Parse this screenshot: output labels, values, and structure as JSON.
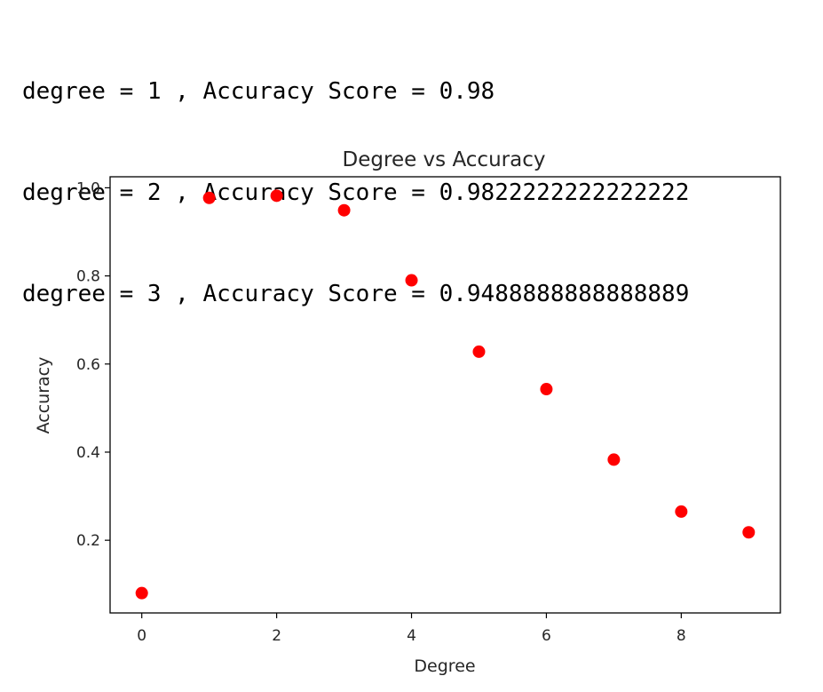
{
  "output": {
    "lines": [
      "degree = 1 , Accuracy Score = 0.98",
      "degree = 2 , Accuracy Score = 0.9822222222222222",
      "degree = 3 , Accuracy Score = 0.9488888888888889"
    ]
  },
  "chart_data": {
    "type": "scatter",
    "title": "Degree vs Accuracy",
    "xlabel": "Degree",
    "ylabel": "Accuracy",
    "x": [
      0,
      1,
      2,
      3,
      4,
      5,
      6,
      7,
      8,
      9
    ],
    "y": [
      0.08,
      0.977,
      0.982,
      0.949,
      0.79,
      0.628,
      0.543,
      0.383,
      0.265,
      0.218
    ],
    "xlim": [
      -0.47,
      9.47
    ],
    "ylim": [
      0.035,
      1.025
    ],
    "xticks": [
      0,
      2,
      4,
      6,
      8
    ],
    "xtick_labels": [
      "0",
      "2",
      "4",
      "6",
      "8"
    ],
    "yticks": [
      0.2,
      0.4,
      0.6,
      0.8,
      1.0
    ],
    "ytick_labels": [
      "0.2",
      "0.4",
      "0.6",
      "0.8",
      "1.0"
    ],
    "grid": false,
    "marker_color": "#ff0000"
  }
}
